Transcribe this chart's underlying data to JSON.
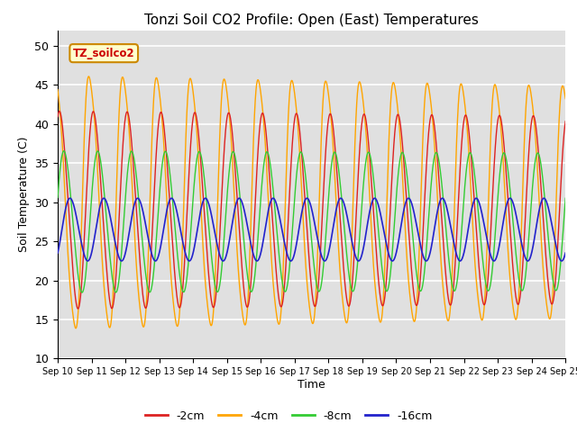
{
  "title": "Tonzi Soil CO2 Profile: Open (East) Temperatures",
  "xlabel": "Time",
  "ylabel": "Soil Temperature (C)",
  "ylim": [
    10,
    52
  ],
  "xlim": [
    0,
    360
  ],
  "bg_color": "#e0e0e0",
  "grid_color": "white",
  "series": {
    "2cm": {
      "color": "#dd2222",
      "label": "-2cm"
    },
    "4cm": {
      "color": "#ffa500",
      "label": "-4cm"
    },
    "8cm": {
      "color": "#33cc33",
      "label": "-8cm"
    },
    "16cm": {
      "color": "#2222cc",
      "label": "-16cm"
    }
  },
  "legend_box_color": "#ffffcc",
  "legend_box_edge": "#cc8800",
  "legend_text": "TZ_soilco2",
  "tick_labels": [
    "Sep 10",
    "Sep 11",
    "Sep 12",
    "Sep 13",
    "Sep 14",
    "Sep 15",
    "Sep 16",
    "Sep 17",
    "Sep 18",
    "Sep 19",
    "Sep 20",
    "Sep 21",
    "Sep 22",
    "Sep 23",
    "Sep 24",
    "Sep 25"
  ],
  "yticks": [
    10,
    15,
    20,
    25,
    30,
    35,
    40,
    45,
    50
  ]
}
